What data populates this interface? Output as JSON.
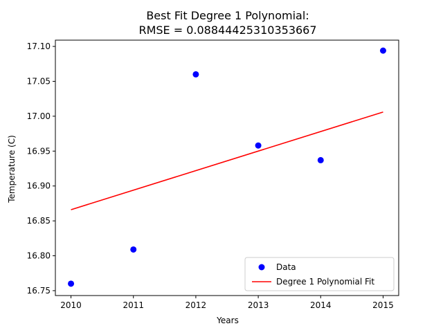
{
  "chart_data": {
    "type": "scatter",
    "title_line1": "Best Fit Degree 1 Polynomial:",
    "title_line2": "RMSE = 0.08844425310353667",
    "xlabel": "Years",
    "ylabel": "Temperature (C)",
    "xlim": [
      2009.75,
      2015.25
    ],
    "ylim": [
      16.743,
      17.109
    ],
    "x_ticks": [
      "2010",
      "2011",
      "2012",
      "2013",
      "2014",
      "2015"
    ],
    "y_ticks": [
      "16.75",
      "16.80",
      "16.85",
      "16.90",
      "16.95",
      "17.00",
      "17.05",
      "17.10"
    ],
    "grid": false,
    "legend_position": "lower right",
    "series": [
      {
        "name": "Data",
        "kind": "points",
        "color": "#0000ff",
        "x": [
          2010,
          2011,
          2012,
          2013,
          2014,
          2015
        ],
        "y": [
          16.76,
          16.809,
          17.06,
          16.958,
          16.937,
          17.094
        ]
      },
      {
        "name": "Degree 1 Polynomial Fit",
        "kind": "line",
        "color": "#ff0000",
        "x": [
          2010,
          2015
        ],
        "y": [
          16.866,
          17.006
        ]
      }
    ]
  }
}
